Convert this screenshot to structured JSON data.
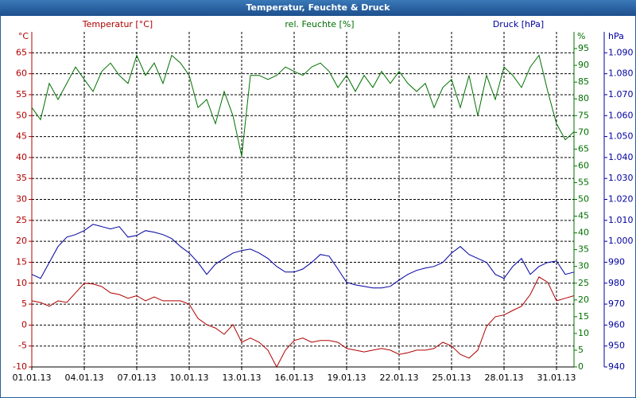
{
  "chart_data": {
    "type": "line",
    "title": "Temperatur, Feuchte & Druck",
    "ylabel": "Temperatur [°C]",
    "y2label": "rel. Feuchte [%]",
    "y3label": "Druck [hPa]",
    "yunit": "°C",
    "y2unit": "%",
    "y3unit": "hPa",
    "x": [
      1,
      1.5,
      2,
      2.5,
      3,
      3.5,
      4,
      4.5,
      5,
      5.5,
      6,
      6.5,
      7,
      7.5,
      8,
      8.5,
      9,
      9.5,
      10,
      10.5,
      11,
      11.5,
      12,
      12.5,
      13,
      13.5,
      14,
      14.5,
      15,
      15.5,
      16,
      16.5,
      17,
      17.5,
      18,
      18.5,
      19,
      19.5,
      20,
      20.5,
      21,
      21.5,
      22,
      22.5,
      23,
      23.5,
      24,
      24.5,
      25,
      25.5,
      26,
      26.5,
      27,
      27.5,
      28,
      28.5,
      29,
      29.5,
      30,
      30.5,
      31,
      31.5,
      32
    ],
    "xlim": [
      1,
      32
    ],
    "xticks": [
      {
        "value": 1,
        "label": "01.01.13"
      },
      {
        "value": 4,
        "label": "04.01.13"
      },
      {
        "value": 7,
        "label": "07.01.13"
      },
      {
        "value": 10,
        "label": "10.01.13"
      },
      {
        "value": 13,
        "label": "13.01.13"
      },
      {
        "value": 16,
        "label": "16.01.13"
      },
      {
        "value": 19,
        "label": "19.01.13"
      },
      {
        "value": 22,
        "label": "22.01.13"
      },
      {
        "value": 25,
        "label": "25.01.13"
      },
      {
        "value": 28,
        "label": "28.01.13"
      },
      {
        "value": 31,
        "label": "31.01.13"
      }
    ],
    "ylim": [
      -10,
      70
    ],
    "yticks": [
      -10,
      -5,
      0,
      5,
      10,
      15,
      20,
      25,
      30,
      35,
      40,
      45,
      50,
      55,
      60,
      65
    ],
    "y2lim": [
      0,
      100
    ],
    "y2ticks": [
      0,
      5,
      10,
      15,
      20,
      25,
      30,
      35,
      40,
      45,
      50,
      55,
      60,
      65,
      70,
      75,
      80,
      85,
      90,
      95
    ],
    "y3lim": [
      940,
      1100
    ],
    "y3ticks": [
      940,
      950,
      960,
      970,
      980,
      990,
      {
        "value": 1000,
        "label": "1.000"
      },
      {
        "value": 1010,
        "label": "1.010"
      },
      {
        "value": 1020,
        "label": "1.020"
      },
      {
        "value": 1030,
        "label": "1.030"
      },
      {
        "value": 1040,
        "label": "1.040"
      },
      {
        "value": 1050,
        "label": "1.050"
      },
      {
        "value": 1060,
        "label": "1.060"
      },
      {
        "value": 1070,
        "label": "1.070"
      },
      {
        "value": 1080,
        "label": "1.080"
      },
      {
        "value": 1090,
        "label": "1.090"
      }
    ],
    "grid": true,
    "series": [
      {
        "name": "Temperatur",
        "color": "#b00000",
        "axis": "y",
        "values": [
          5.8,
          5.4,
          4.5,
          5.8,
          5.4,
          7.7,
          10,
          9.8,
          9.2,
          7.7,
          7.3,
          6.4,
          7,
          5.8,
          6.7,
          5.8,
          5.8,
          5.8,
          5,
          1.6,
          0.1,
          -0.7,
          -2.2,
          0.1,
          -4.1,
          -3.1,
          -4.1,
          -6,
          -10,
          -6,
          -3.7,
          -3.1,
          -4.1,
          -3.7,
          -3.7,
          -4.1,
          -5.6,
          -6,
          -6.4,
          -6,
          -5.6,
          -6,
          -7,
          -6.6,
          -6,
          -6,
          -5.6,
          -4.1,
          -5,
          -7,
          -7.9,
          -6,
          -0.3,
          2,
          2.4,
          3.5,
          4.5,
          7.3,
          11.5,
          10.2,
          5.8,
          6.4,
          7
        ]
      },
      {
        "name": "rel. Feuchte",
        "color": "#007000",
        "axis": "y2",
        "values": [
          77.4,
          73.8,
          84.6,
          79.8,
          84.6,
          89.5,
          85.8,
          82.2,
          88.2,
          90.7,
          87,
          84.6,
          93,
          87,
          90.7,
          84.6,
          93,
          90.7,
          87,
          77.4,
          79.8,
          72.6,
          82.2,
          75,
          62.9,
          87,
          87,
          85.8,
          87,
          89.5,
          88.2,
          87,
          89.5,
          90.7,
          88.2,
          83.4,
          87,
          82.2,
          87,
          83.4,
          88.2,
          84.6,
          88.2,
          84.6,
          82.2,
          84.6,
          77.4,
          83.4,
          85.8,
          77.4,
          87,
          75,
          87,
          79.8,
          89.5,
          87,
          83.4,
          89.5,
          93,
          82.2,
          72.6,
          67.8,
          70.2
        ]
      },
      {
        "name": "Druck",
        "color": "#0000a0",
        "axis": "y3",
        "values": [
          984.2,
          982.3,
          989.9,
          997.5,
          1002,
          1003.2,
          1005.1,
          1008.1,
          1007,
          1005.9,
          1007,
          1002,
          1002.8,
          1005.1,
          1004.3,
          1003.2,
          1001.3,
          997.5,
          994.4,
          989.9,
          984.2,
          989.1,
          991.8,
          994.4,
          995.6,
          996.3,
          994.4,
          991.8,
          988,
          985.3,
          985.3,
          986.8,
          989.9,
          993.7,
          992.9,
          986.8,
          980.4,
          979.2,
          978.5,
          977.7,
          977.7,
          978.5,
          981.5,
          984.2,
          986.1,
          987.2,
          988,
          989.9,
          994.4,
          997.5,
          993.7,
          991.8,
          989.9,
          984.2,
          982.3,
          988,
          991.8,
          984.2,
          988,
          989.9,
          990.6,
          984.2,
          985.3
        ]
      }
    ]
  }
}
